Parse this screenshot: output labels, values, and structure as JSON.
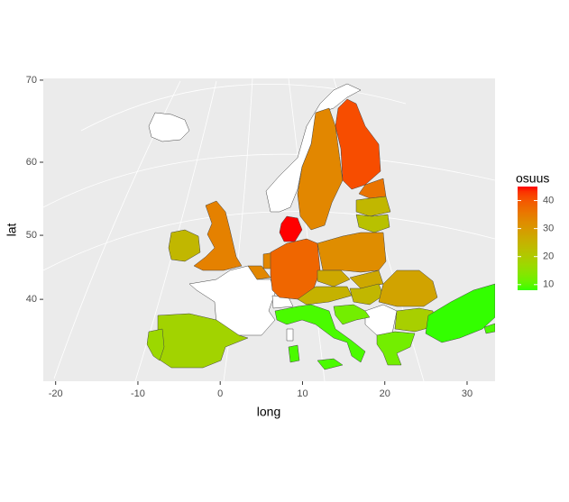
{
  "chart_data": {
    "type": "map",
    "x_label": "long",
    "y_label": "lat",
    "xlim": [
      -21.5,
      33.4
    ],
    "xticks": [
      -20,
      -10,
      0,
      10,
      20,
      30
    ],
    "ylim": [
      24.4,
      70.2
    ],
    "yticks": [
      40,
      50,
      60,
      70
    ],
    "legend": {
      "title": "osuus",
      "ticks": [
        10,
        20,
        30,
        40
      ],
      "limits": [
        8,
        45
      ],
      "low_color": "#33ff00",
      "high_color": "#ff0000"
    },
    "na_color": "#ffffff",
    "values": [
      33,
      41,
      36,
      24,
      22,
      45,
      34,
      24,
      33,
      33,
      38,
      32,
      27,
      27,
      25,
      24,
      28,
      9,
      12,
      19,
      12,
      8,
      9,
      18,
      17
    ]
  }
}
